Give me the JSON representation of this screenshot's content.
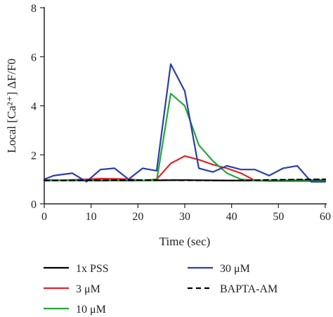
{
  "chart_data": {
    "type": "line",
    "xlabel": "Time (sec)",
    "ylabel": "Local [Ca²⁺] ΔF/F0",
    "xlim": [
      0,
      60
    ],
    "ylim": [
      0,
      8
    ],
    "xticks": [
      0,
      10,
      20,
      30,
      40,
      50,
      60
    ],
    "yticks": [
      0,
      2,
      4,
      6,
      8
    ],
    "grid": false,
    "legend_position": "bottom",
    "series": [
      {
        "name": "1x PSS",
        "color": "#000000",
        "dash": "solid",
        "x": [
          0,
          10,
          20,
          30,
          40,
          50,
          60
        ],
        "y": [
          0.97,
          0.95,
          0.95,
          0.97,
          0.95,
          0.95,
          0.96
        ]
      },
      {
        "name": "3 μM",
        "color": "#e0262b",
        "dash": "solid",
        "x": [
          0,
          3,
          6,
          9,
          12,
          15,
          18,
          21,
          24,
          27,
          30,
          33,
          36,
          39,
          42,
          45,
          48,
          51,
          54,
          57,
          60
        ],
        "y": [
          0.95,
          0.95,
          0.98,
          1.0,
          1.03,
          1.02,
          1.01,
          0.95,
          1.0,
          1.65,
          1.95,
          1.8,
          1.6,
          1.45,
          1.25,
          0.95,
          0.93,
          0.93,
          0.93,
          0.93,
          0.93
        ]
      },
      {
        "name": "10 μM",
        "color": "#22a83a",
        "dash": "solid",
        "x": [
          0,
          3,
          6,
          9,
          12,
          15,
          18,
          21,
          24,
          27,
          30,
          33,
          36,
          39,
          42,
          45,
          48,
          51,
          54,
          57,
          60
        ],
        "y": [
          0.95,
          0.95,
          0.95,
          0.95,
          0.97,
          0.95,
          0.97,
          0.95,
          0.95,
          4.5,
          4.0,
          2.4,
          1.75,
          1.25,
          1.0,
          0.95,
          0.93,
          0.93,
          0.93,
          0.93,
          0.93
        ]
      },
      {
        "name": "30 μM",
        "color": "#2b3fa6",
        "dash": "solid",
        "x": [
          0,
          2,
          6,
          9,
          12,
          15,
          18,
          21,
          24,
          27,
          30,
          33,
          36,
          39,
          42,
          45,
          48,
          51,
          54,
          57,
          60
        ],
        "y": [
          1.0,
          1.15,
          1.25,
          0.9,
          1.4,
          1.45,
          1.0,
          1.45,
          1.35,
          5.7,
          4.6,
          1.45,
          1.3,
          1.55,
          1.4,
          1.4,
          1.15,
          1.45,
          1.55,
          0.9,
          0.9
        ]
      },
      {
        "name": "BAPTA-AM",
        "color": "#000000",
        "dash": "dashed",
        "x": [
          0,
          10,
          20,
          30,
          40,
          50,
          60
        ],
        "y": [
          0.95,
          0.96,
          0.97,
          0.96,
          0.95,
          0.98,
          1.0
        ]
      }
    ]
  }
}
